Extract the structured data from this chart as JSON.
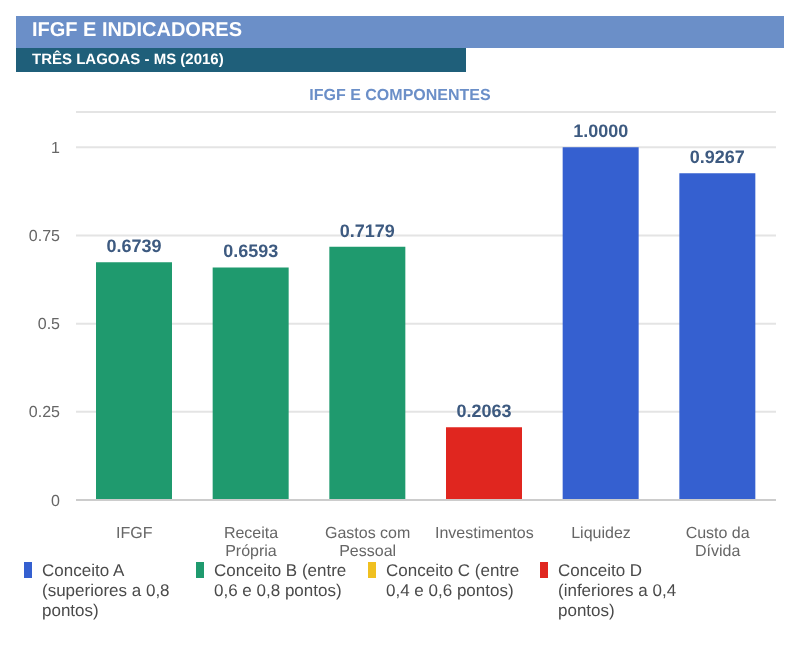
{
  "chart_data": {
    "type": "bar",
    "title": "IFGF E INDICADORES",
    "subtitle": "TRÊS LAGOAS - MS (2016)",
    "annotations": [
      "IFGF E COMPONENTES"
    ],
    "categories": [
      "IFGF",
      "Receita Própria",
      "Gastos com Pessoal",
      "Investimentos",
      "Liquidez",
      "Custo da Dívida"
    ],
    "stacked": true,
    "series": [
      {
        "name": "Conceito A (superiores a 0,8 pontos)",
        "color": "#3560d0",
        "values": [
          null,
          null,
          null,
          null,
          1.0,
          0.9267
        ],
        "value_labels": [
          null,
          null,
          null,
          null,
          "1.0000",
          "0.9267"
        ]
      },
      {
        "name": "Conceito B (entre 0,6 e 0,8 pontos)",
        "color": "#1f9a6e",
        "values": [
          0.6739,
          0.6593,
          0.7179,
          null,
          null,
          null
        ],
        "value_labels": [
          "0.6739",
          "0.6593",
          "0.7179",
          null,
          null,
          null
        ]
      },
      {
        "name": "Conceito C (entre 0,4 e 0,6 pontos)",
        "color": "#f0c020",
        "values": [
          null,
          null,
          null,
          null,
          null,
          null
        ],
        "value_labels": [
          null,
          null,
          null,
          null,
          null,
          null
        ]
      },
      {
        "name": "Conceito D (inferiores a 0,4 pontos)",
        "color": "#e0261f",
        "values": [
          null,
          null,
          null,
          0.2063,
          null,
          null
        ],
        "value_labels": [
          null,
          null,
          null,
          "0.2063",
          null,
          null
        ]
      }
    ],
    "ylim": [
      0,
      1.1
    ],
    "yticks": [
      0,
      0.25,
      0.5,
      0.75,
      1
    ],
    "grid": "y",
    "legend": "bottom"
  }
}
